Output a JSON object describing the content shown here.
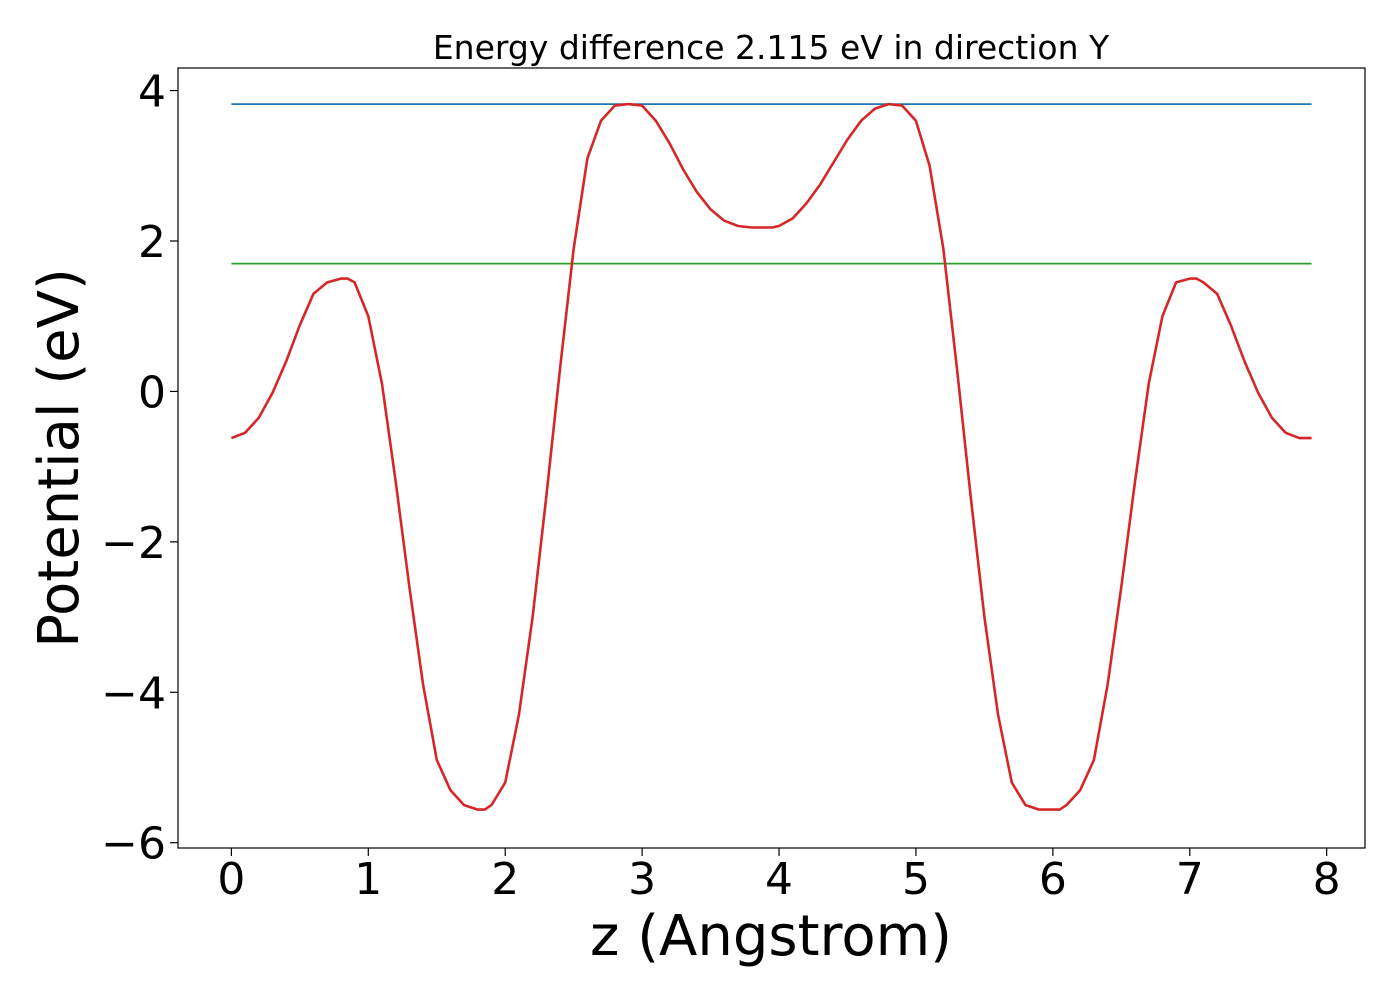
{
  "chart_data": {
    "type": "line",
    "title": "Energy difference 2.115 eV in direction Y",
    "xlabel": "z (Angstrom)",
    "ylabel": "Potential (eV)",
    "xlim": [
      -0.39,
      8.28
    ],
    "ylim": [
      -6.07,
      4.3
    ],
    "xticks": [
      0,
      1,
      2,
      3,
      4,
      5,
      6,
      7,
      8
    ],
    "yticks": [
      -6,
      -4,
      -2,
      0,
      2,
      4
    ],
    "xtick_labels": [
      "0",
      "1",
      "2",
      "3",
      "4",
      "5",
      "6",
      "7",
      "8"
    ],
    "ytick_labels": [
      "−6",
      "−4",
      "−2",
      "0",
      "2",
      "4"
    ],
    "grid": false,
    "legend": "none",
    "series": [
      {
        "color": "#1f77b4",
        "x": [
          0,
          7.89
        ],
        "y": [
          3.82,
          3.82
        ]
      },
      {
        "color": "#2ca02c",
        "x": [
          0,
          7.89
        ],
        "y": [
          1.7,
          1.7
        ]
      },
      {
        "color": "#d62728",
        "x": [
          0,
          0.1,
          0.2,
          0.3,
          0.4,
          0.5,
          0.6,
          0.7,
          0.8,
          0.85,
          0.9,
          1.0,
          1.1,
          1.2,
          1.3,
          1.4,
          1.5,
          1.6,
          1.7,
          1.8,
          1.85,
          1.9,
          2.0,
          2.1,
          2.2,
          2.3,
          2.4,
          2.5,
          2.6,
          2.7,
          2.8,
          2.9,
          3.0,
          3.1,
          3.2,
          3.3,
          3.4,
          3.5,
          3.6,
          3.7,
          3.8,
          3.9,
          3.95,
          4.0,
          4.1,
          4.2,
          4.3,
          4.4,
          4.5,
          4.6,
          4.7,
          4.8,
          4.9,
          5.0,
          5.1,
          5.2,
          5.3,
          5.4,
          5.5,
          5.6,
          5.7,
          5.8,
          5.9,
          6.0,
          6.05,
          6.1,
          6.2,
          6.3,
          6.4,
          6.5,
          6.6,
          6.7,
          6.8,
          6.9,
          7.0,
          7.05,
          7.1,
          7.2,
          7.3,
          7.4,
          7.5,
          7.6,
          7.7,
          7.8,
          7.89
        ],
        "y": [
          -0.62,
          -0.55,
          -0.35,
          -0.02,
          0.4,
          0.88,
          1.3,
          1.45,
          1.5,
          1.5,
          1.45,
          1.0,
          0.1,
          -1.2,
          -2.6,
          -3.9,
          -4.9,
          -5.3,
          -5.5,
          -5.56,
          -5.56,
          -5.5,
          -5.2,
          -4.3,
          -3.0,
          -1.4,
          0.3,
          1.9,
          3.1,
          3.6,
          3.8,
          3.82,
          3.8,
          3.6,
          3.3,
          2.95,
          2.65,
          2.42,
          2.27,
          2.2,
          2.18,
          2.18,
          2.18,
          2.2,
          2.3,
          2.5,
          2.75,
          3.05,
          3.35,
          3.6,
          3.76,
          3.82,
          3.8,
          3.6,
          3.0,
          1.9,
          0.3,
          -1.4,
          -3.0,
          -4.3,
          -5.2,
          -5.5,
          -5.56,
          -5.56,
          -5.56,
          -5.5,
          -5.3,
          -4.9,
          -3.9,
          -2.6,
          -1.2,
          0.1,
          1.0,
          1.45,
          1.5,
          1.5,
          1.45,
          1.3,
          0.88,
          0.4,
          -0.02,
          -0.35,
          -0.55,
          -0.62,
          -0.62
        ]
      }
    ]
  }
}
